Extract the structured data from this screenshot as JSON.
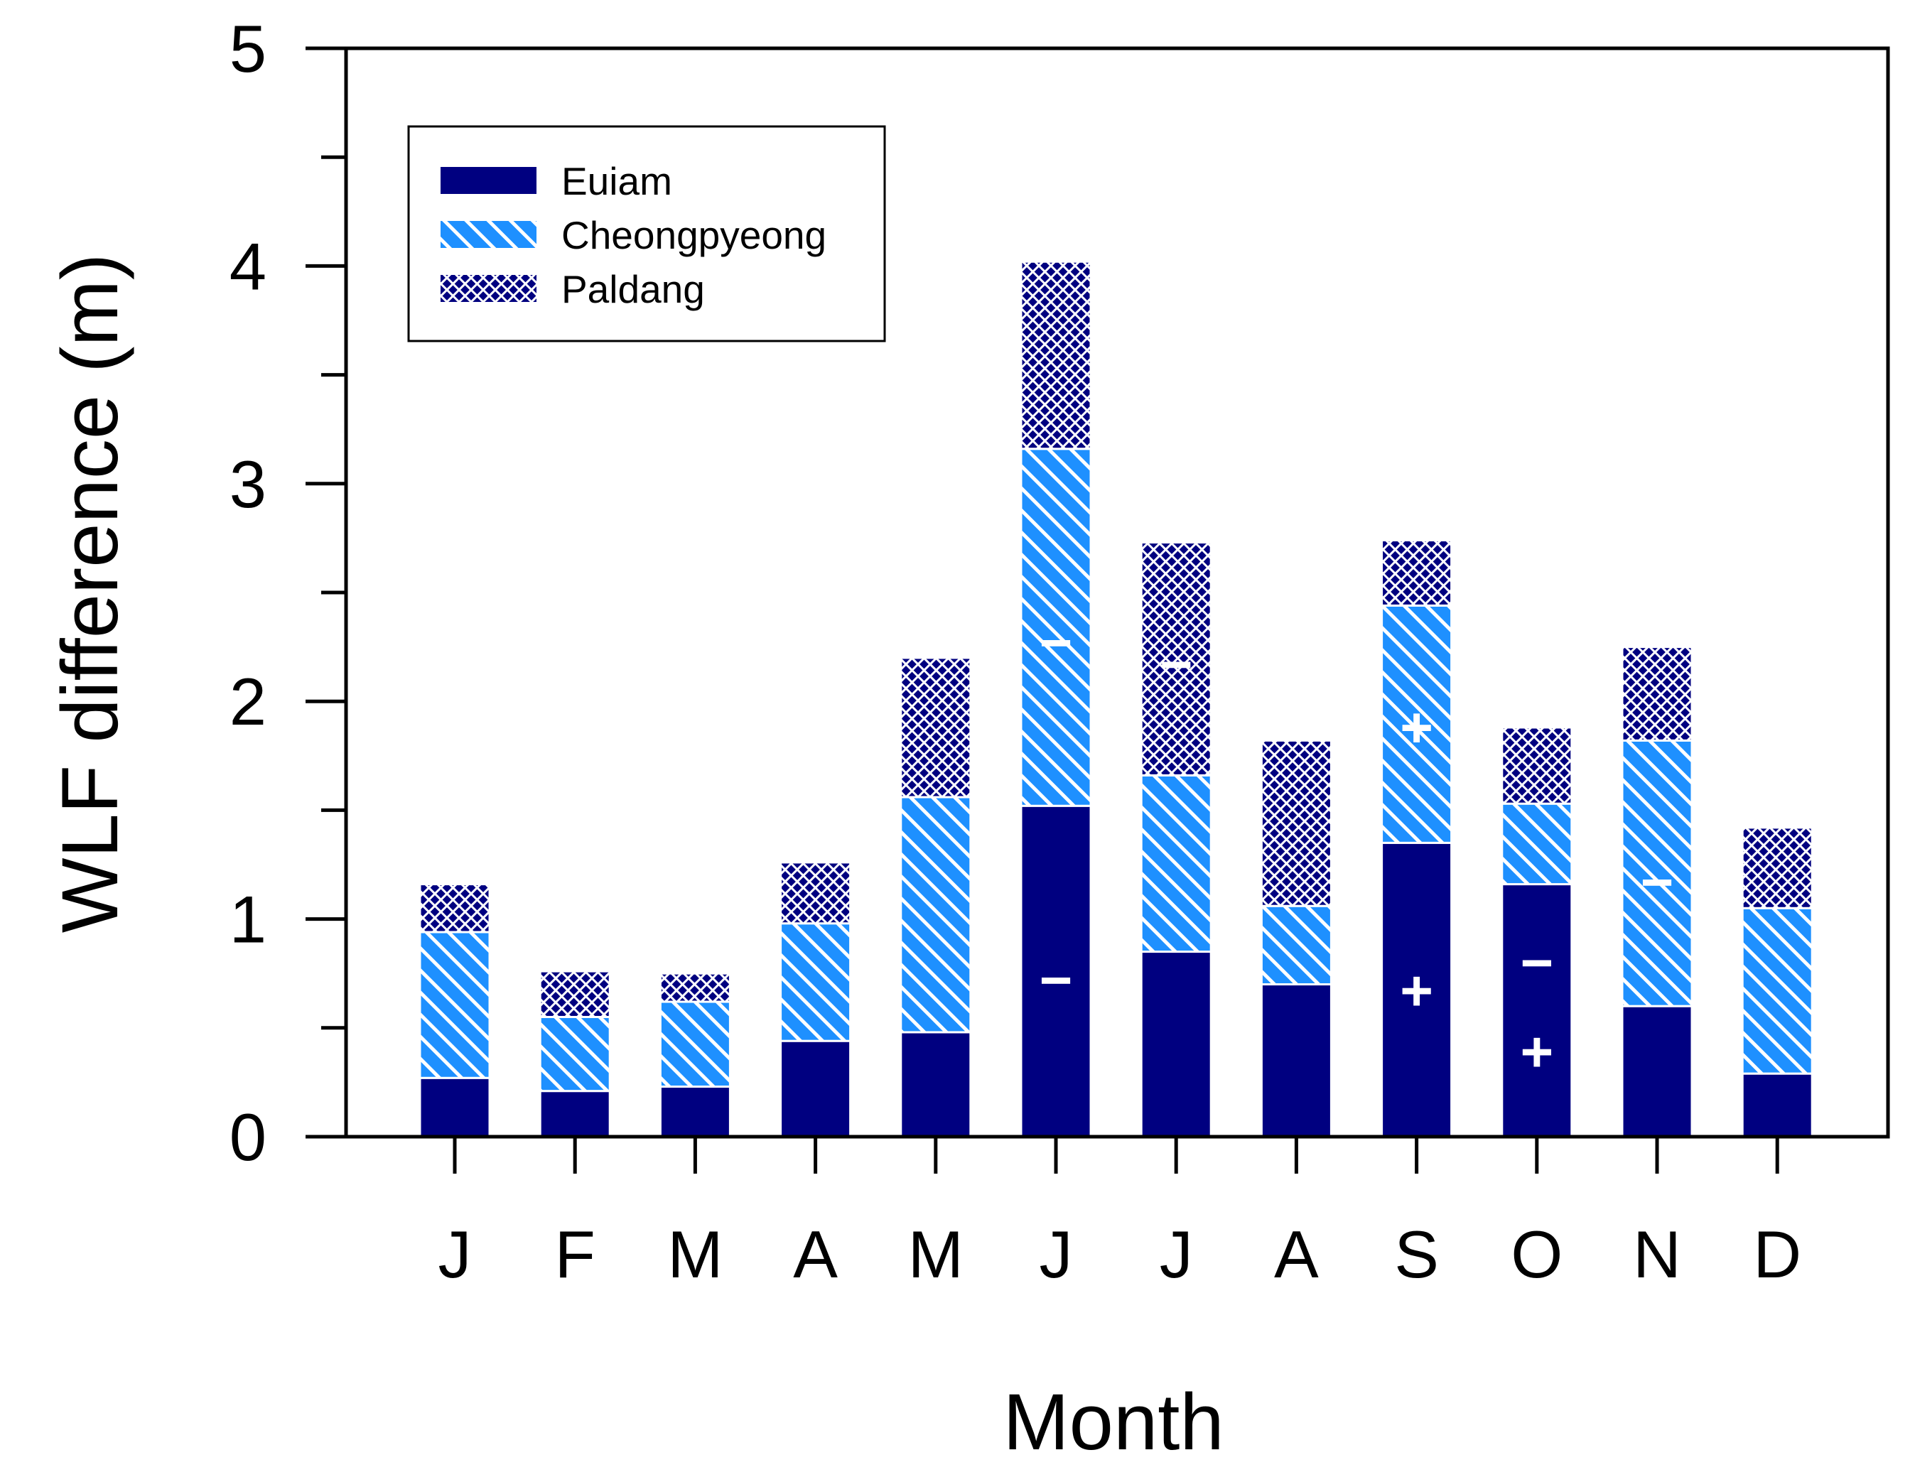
{
  "chart_data": {
    "type": "bar",
    "stacked": true,
    "title": "",
    "xlabel": "Month",
    "ylabel": "WLF difference (m)",
    "ylim": [
      0,
      5
    ],
    "yticks": [
      "0",
      "1",
      "2",
      "3",
      "4",
      "5"
    ],
    "grid": false,
    "legend_position": "top-left",
    "categories": [
      "J",
      "F",
      "M",
      "A",
      "M",
      "J",
      "J",
      "A",
      "S",
      "O",
      "N",
      "D"
    ],
    "series": [
      {
        "name": "Euiam",
        "pattern": "solid",
        "values": [
          0.27,
          0.21,
          0.23,
          0.44,
          0.48,
          1.52,
          0.85,
          0.7,
          1.35,
          1.16,
          0.6,
          0.29
        ]
      },
      {
        "name": "Cheongpyeong",
        "pattern": "diagonal-hatch",
        "values": [
          0.67,
          0.34,
          0.39,
          0.54,
          1.08,
          1.64,
          0.81,
          0.36,
          1.09,
          0.37,
          1.22,
          0.76
        ]
      },
      {
        "name": "Paldang",
        "pattern": "crosshatch",
        "values": [
          0.22,
          0.21,
          0.13,
          0.28,
          0.64,
          0.86,
          1.07,
          0.76,
          0.3,
          0.35,
          0.43,
          0.37
        ]
      }
    ],
    "annotations": [
      {
        "text": "−",
        "category_index": 5,
        "y": 0.72
      },
      {
        "text": "−",
        "category_index": 5,
        "y": 2.27
      },
      {
        "text": "−",
        "category_index": 6,
        "y": 2.17
      },
      {
        "text": "+",
        "category_index": 8,
        "y": 0.67
      },
      {
        "text": "+",
        "category_index": 8,
        "y": 1.88
      },
      {
        "text": "+",
        "category_index": 9,
        "y": 0.39
      },
      {
        "text": "−",
        "category_index": 9,
        "y": 0.8
      },
      {
        "text": "−",
        "category_index": 10,
        "y": 1.17
      }
    ]
  },
  "colors": {
    "euiam": "#000080",
    "cheongpyeong_fill": "#1e90ff",
    "cheongpyeong_hatch": "#ffffff",
    "paldang_fill": "#000080",
    "paldang_hatch": "#ffffff",
    "axis": "#000000"
  }
}
